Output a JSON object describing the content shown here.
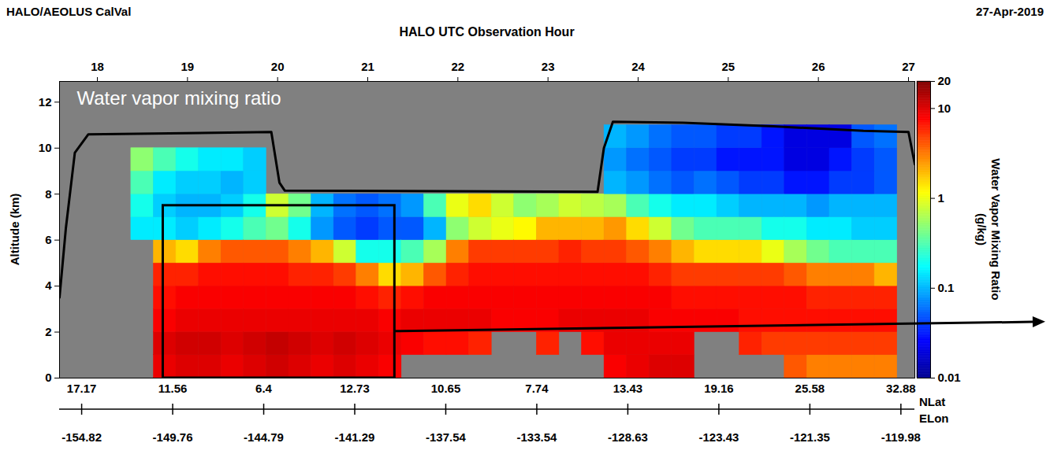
{
  "chart_data": {
    "type": "heatmap",
    "title": "HALO/AEOLUS CalVal",
    "date": "27-Apr-2019",
    "annotation": "Water vapor mixing ratio",
    "x_label": "HALO UTC Observation Hour",
    "y_label": "Altitude (km)",
    "xlim": [
      17.58,
      27.07
    ],
    "xticks": [
      18,
      19,
      20,
      21,
      22,
      23,
      24,
      25,
      26,
      27
    ],
    "ylim": [
      0,
      12.9
    ],
    "yticks": [
      0,
      2,
      4,
      6,
      8,
      10,
      12
    ],
    "lat_axis": {
      "label": "NLat",
      "ticks": [
        {
          "value": 17.83,
          "label": "17.17"
        },
        {
          "value": 18.84,
          "label": "11.56"
        },
        {
          "value": 19.85,
          "label": "6.4"
        },
        {
          "value": 20.86,
          "label": "12.73"
        },
        {
          "value": 21.87,
          "label": "10.65"
        },
        {
          "value": 22.88,
          "label": "7.74"
        },
        {
          "value": 23.89,
          "label": "13.43"
        },
        {
          "value": 24.9,
          "label": "19.16"
        },
        {
          "value": 25.91,
          "label": "25.58"
        },
        {
          "value": 26.92,
          "label": "32.88"
        }
      ]
    },
    "lon_axis": {
      "label": "ELon",
      "ticks": [
        {
          "value": 17.83,
          "label": "-154.82"
        },
        {
          "value": 18.84,
          "label": "-149.76"
        },
        {
          "value": 19.85,
          "label": "-144.79"
        },
        {
          "value": 20.86,
          "label": "-141.29"
        },
        {
          "value": 21.87,
          "label": "-137.54"
        },
        {
          "value": 22.88,
          "label": "-133.54"
        },
        {
          "value": 23.89,
          "label": "-128.63"
        },
        {
          "value": 24.9,
          "label": "-123.43"
        },
        {
          "value": 25.91,
          "label": "-121.35"
        },
        {
          "value": 26.92,
          "label": "-119.98"
        }
      ]
    },
    "cells": {
      "x": [
        18.5,
        18.75,
        19,
        19.25,
        19.5,
        19.75,
        20,
        20.25,
        20.5,
        20.75,
        21,
        21.25,
        21.5,
        21.75,
        22,
        22.25,
        22.5,
        22.75,
        23,
        23.25,
        23.5,
        23.75,
        24,
        24.25,
        24.5,
        24.75,
        25,
        25.25,
        25.5,
        25.75,
        26,
        26.25,
        26.5,
        26.75
      ],
      "y": [
        0.5,
        1.5,
        2.5,
        3.5,
        4.5,
        5.5,
        6.5,
        7.5,
        8.5,
        9.5,
        10.5
      ],
      "values": [
        [
          null,
          null,
          null,
          null,
          null,
          null,
          0.15,
          0.2,
          0.3,
          0.5,
          null
        ],
        [
          9,
          10,
          8,
          7,
          6,
          2,
          0.15,
          0.12,
          0.15,
          0.3,
          null
        ],
        [
          10,
          11,
          9,
          8,
          6,
          1.5,
          0.12,
          0.1,
          0.12,
          0.2,
          null
        ],
        [
          10,
          11,
          9,
          8,
          7,
          3,
          0.15,
          0.1,
          0.12,
          0.15,
          null
        ],
        [
          9,
          10,
          9,
          8,
          7,
          4,
          0.2,
          0.12,
          0.1,
          0.15,
          null
        ],
        [
          10,
          11,
          9,
          8,
          7,
          4,
          0.3,
          0.2,
          0.12,
          0.12,
          null
        ],
        [
          11,
          12,
          9,
          8,
          7,
          4,
          0.4,
          0.8,
          null,
          null,
          null
        ],
        [
          10,
          11,
          9,
          8,
          6,
          3,
          0.2,
          0.4,
          null,
          null,
          null
        ],
        [
          9,
          10,
          9,
          8,
          6,
          2,
          0.08,
          0.1,
          null,
          null,
          null
        ],
        [
          10,
          11,
          9,
          8,
          5,
          0.8,
          0.05,
          0.06,
          null,
          null,
          null
        ],
        [
          9,
          10,
          9,
          7,
          3,
          0.2,
          0.04,
          0.05,
          null,
          null,
          null
        ],
        [
          8,
          9,
          8,
          6,
          1.5,
          0.2,
          0.05,
          0.06,
          null,
          null,
          null
        ],
        [
          null,
          8,
          9,
          7,
          2,
          0.3,
          0.05,
          0.08,
          null,
          null,
          null
        ],
        [
          null,
          7,
          9,
          8,
          4,
          0.6,
          0.1,
          0.3,
          null,
          null,
          null
        ],
        [
          null,
          7,
          9,
          8,
          6,
          3,
          0.5,
          1,
          null,
          null,
          null
        ],
        [
          null,
          6,
          9,
          8,
          7,
          5,
          0.8,
          1.5,
          null,
          null,
          null
        ],
        [
          null,
          null,
          8,
          8,
          7,
          5,
          1,
          0.8,
          null,
          null,
          null
        ],
        [
          null,
          null,
          8,
          8,
          7,
          5,
          1.2,
          0.5,
          null,
          null,
          null
        ],
        [
          null,
          6,
          8,
          8,
          7,
          5,
          2,
          0.6,
          null,
          null,
          null
        ],
        [
          null,
          null,
          9,
          8,
          7,
          6,
          2,
          0.8,
          null,
          null,
          null
        ],
        [
          null,
          7,
          9,
          8,
          7,
          5,
          2,
          0.7,
          null,
          null,
          null
        ],
        [
          8,
          9,
          9,
          8,
          7,
          5,
          2.5,
          0.6,
          0.1,
          0.08,
          0.1
        ],
        [
          9,
          9,
          9,
          8,
          7,
          4,
          1.5,
          0.3,
          0.08,
          0.06,
          0.08
        ],
        [
          10,
          9,
          8,
          8,
          6,
          3,
          0.8,
          0.2,
          0.06,
          0.05,
          0.06
        ],
        [
          10,
          9,
          8,
          7,
          5,
          2,
          0.4,
          0.15,
          0.05,
          0.04,
          0.05
        ],
        [
          null,
          null,
          8,
          7,
          5,
          1.5,
          0.3,
          0.15,
          0.06,
          0.04,
          0.05
        ],
        [
          null,
          null,
          8,
          7,
          5,
          1.5,
          0.3,
          0.12,
          0.05,
          0.03,
          0.04
        ],
        [
          null,
          6,
          7,
          7,
          5,
          1.5,
          0.3,
          0.1,
          0.04,
          0.03,
          0.04
        ],
        [
          null,
          5,
          7,
          7,
          5,
          1,
          0.2,
          0.1,
          0.04,
          0.03,
          0.03
        ],
        [
          4,
          5,
          7,
          7,
          4,
          0.6,
          0.2,
          0.1,
          0.03,
          0.02,
          0.02
        ],
        [
          3,
          5,
          7,
          6,
          3,
          0.4,
          0.15,
          0.08,
          0.03,
          0.02,
          0.02
        ],
        [
          3,
          5,
          7,
          6,
          3,
          0.3,
          0.15,
          0.1,
          0.04,
          0.03,
          0.02
        ],
        [
          3,
          5,
          7,
          6,
          3,
          0.3,
          0.12,
          0.1,
          0.04,
          0.04,
          0.05
        ],
        [
          3,
          5,
          7,
          6,
          2,
          0.3,
          0.12,
          0.1,
          0.05,
          0.05,
          0.06
        ]
      ]
    },
    "colorbar": {
      "label": "Water Vapor Mixing Ratio (g/kg)",
      "lim": [
        0.01,
        20
      ],
      "ticks": [
        0.01,
        0.1,
        1,
        10,
        20
      ],
      "log": true
    },
    "flight_track": {
      "x": [
        17.58,
        17.65,
        17.75,
        17.9,
        19.93,
        20.02,
        20.08,
        23.55,
        23.62,
        23.72,
        24.5,
        25.5,
        26.5,
        27.0,
        27.07
      ],
      "y": [
        3.5,
        6.5,
        9.8,
        10.6,
        10.7,
        8.5,
        8.15,
        8.1,
        10.0,
        11.15,
        11.1,
        10.95,
        10.75,
        10.7,
        9.3
      ],
      "color": "#000000"
    },
    "highlight_box": {
      "x": [
        18.73,
        21.3
      ],
      "y": [
        0,
        7.5
      ]
    }
  }
}
